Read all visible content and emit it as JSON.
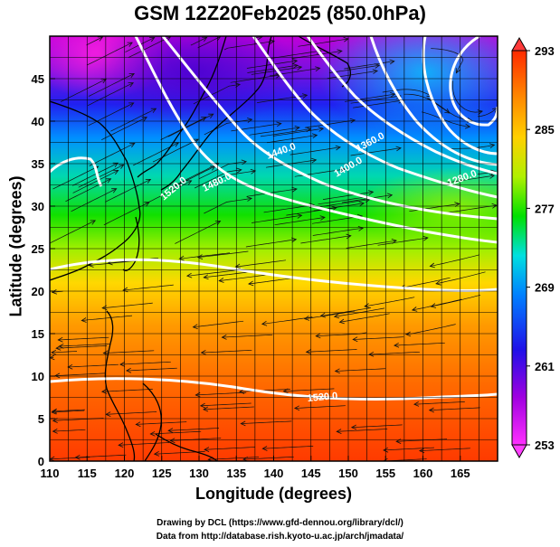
{
  "title": "GSM 12Z20Feb2025 (850.0hPa)",
  "xlabel": "Longitude (degrees)",
  "ylabel": "Latitude  (degrees)",
  "credits": [
    "Drawing by DCL (https://www.gfd-dennou.org/library/dcl/)",
    "Data from http://database.rish.kyoto-u.ac.jp/arch/jmadata/"
  ],
  "chart_data": {
    "type": "heatmap",
    "x_ticks": [
      110,
      115,
      120,
      125,
      130,
      135,
      140,
      145,
      150,
      155,
      160,
      165
    ],
    "y_ticks": [
      0,
      5,
      10,
      15,
      20,
      25,
      30,
      35,
      40,
      45
    ],
    "xlim": [
      110,
      170
    ],
    "ylim": [
      0,
      50
    ],
    "colorbar": {
      "ticks": [
        253,
        261,
        269,
        277,
        285,
        293
      ],
      "range": [
        253,
        293
      ],
      "extend": "both",
      "colors": [
        "#ff00ff",
        "#8a00e0",
        "#1e10f0",
        "#0088ff",
        "#00e0e0",
        "#00e000",
        "#b8f000",
        "#ffd000",
        "#ff8800",
        "#ff3300"
      ]
    },
    "contour_labels": [
      "1440.0",
      "1480.0",
      "1520.0",
      "1360.0",
      "1400.0",
      "1280.0",
      "1520.0"
    ],
    "contour_color": "#ffffff",
    "grid": true,
    "overlays": [
      "coastlines",
      "wind streamlines with arrows",
      "geopotential height contours"
    ]
  }
}
